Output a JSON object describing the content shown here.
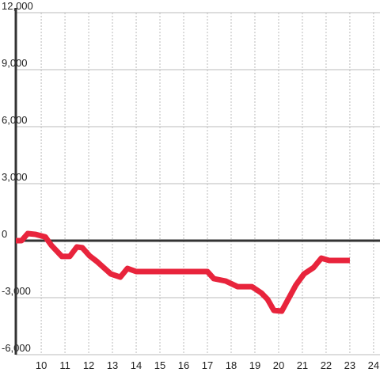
{
  "chart_data": {
    "type": "line",
    "x": [
      8.93,
      9.17,
      9.43,
      9.77,
      10.17,
      10.43,
      10.87,
      11.2,
      11.5,
      11.73,
      12.03,
      12.33,
      12.93,
      13.33,
      13.63,
      14.0,
      14.6,
      17.0,
      17.27,
      17.77,
      18.27,
      18.87,
      19.27,
      19.53,
      19.8,
      20.13,
      20.73,
      21.07,
      21.47,
      21.8,
      22.13,
      23.0
    ],
    "series": [
      {
        "color": "#e8243c",
        "values": [
          0,
          0,
          375,
          330,
          200,
          -250,
          -830,
          -830,
          -330,
          -370,
          -790,
          -1080,
          -1750,
          -1920,
          -1460,
          -1625,
          -1625,
          -1625,
          -2000,
          -2125,
          -2420,
          -2420,
          -2750,
          -3080,
          -3670,
          -3710,
          -2330,
          -1750,
          -1420,
          -920,
          -1040,
          -1040
        ]
      }
    ],
    "xlim": [
      8.93,
      24.27
    ],
    "ylim": [
      -6000,
      12000
    ],
    "xticks": [
      10,
      11,
      12,
      13,
      14,
      15,
      16,
      17,
      18,
      19,
      20,
      21,
      22,
      23,
      24
    ],
    "yticks": [
      {
        "value": 12000,
        "label": "12,000"
      },
      {
        "value": 9000,
        "label": "9,000"
      },
      {
        "value": 6000,
        "label": "6,000"
      },
      {
        "value": 3000,
        "label": "3,000"
      },
      0,
      {
        "value": -3000,
        "label": "-3,000"
      },
      {
        "value": -6000,
        "label": "-6,000"
      }
    ],
    "grid": true
  }
}
